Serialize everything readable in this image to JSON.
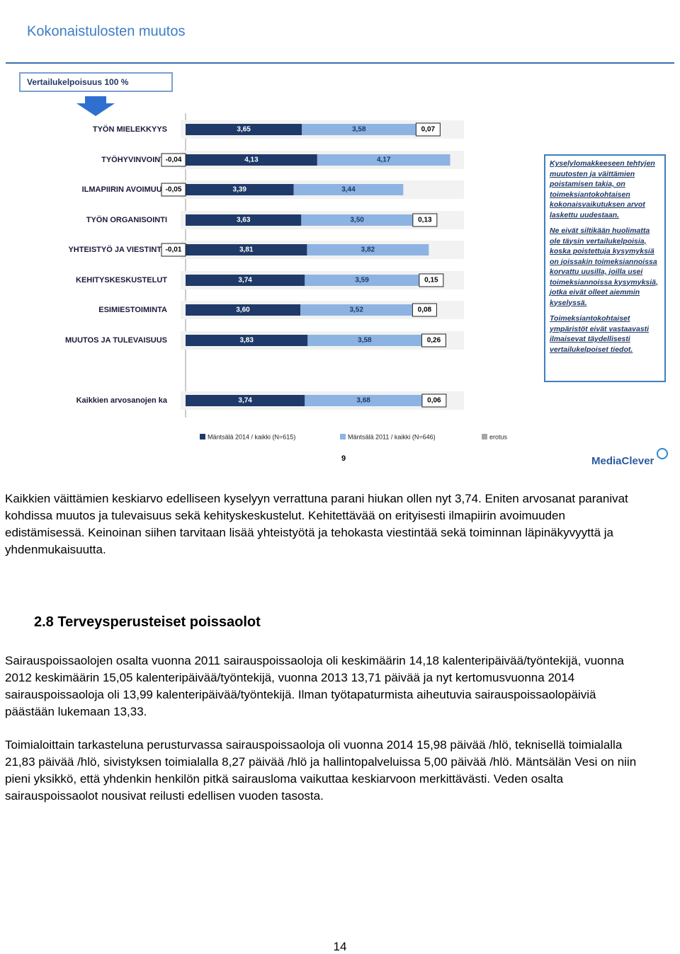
{
  "header": {
    "title": "Kokonaistulosten muutos",
    "box": "Vertailukelpoisuus 100 %"
  },
  "chart_data": {
    "type": "bar",
    "categories": [
      "TYÖN MIELEKKYYS",
      "TYÖHYVINVOINTI",
      "ILMAPIIRIN AVOIMUUS",
      "TYÖN ORGANISOINTI",
      "YHTEISTYÖ JA VIESTINTÄ",
      "KEHITYSKESKUSTELUT",
      "ESIMIESTOIMINTA",
      "MUUTOS JA TULEVAISUUS",
      "Kaikkien arvosanojen ka"
    ],
    "series": [
      {
        "name": "Mäntsälä 2014 / kaikki (N=615)",
        "color": "#1f3a68",
        "values": [
          3.65,
          4.13,
          3.39,
          3.63,
          3.81,
          3.74,
          3.6,
          3.83,
          3.74
        ],
        "value_labels": [
          "3,65",
          "4,13",
          "3,39",
          "3,63",
          "3,81",
          "3,74",
          "3,60",
          "3,83",
          "3,74"
        ]
      },
      {
        "name": "Mäntsälä 2011 / kaikki (N=646)",
        "color": "#8db3e2",
        "values": [
          3.58,
          4.17,
          3.44,
          3.5,
          3.82,
          3.59,
          3.52,
          3.58,
          3.68
        ],
        "value_labels": [
          "3,58",
          "4,17",
          "3,44",
          "3,50",
          "3,82",
          "3,59",
          "3,52",
          "3,58",
          "3,68"
        ]
      },
      {
        "name": "erotus",
        "color": "#a6a6a6",
        "values": [
          0.07,
          -0.04,
          -0.05,
          0.13,
          -0.01,
          0.15,
          0.08,
          0.26,
          0.06
        ],
        "value_labels": [
          "0,07",
          "-0,04",
          "-0,05",
          "0,13",
          "-0,01",
          "0,15",
          "0,08",
          "0,26",
          "0,06"
        ]
      }
    ]
  },
  "sidebar": [
    "Kyselylomakkeeseen tehtyjen muutosten ja väittämien poistamisen takia, on toimeksiantokohtaisen kokonaisvaikutuksen arvot laskettu uudestaan.",
    "Ne eivät siltikään huolimatta ole täysin vertailukelpoisia, koska poistettuja kysymyksiä on joissakin toimeksiannoissa korvattu uusilla, joilla usei toimeksiannoissa kysymyksiä, jotka eivät olleet aiemmin kyselyssä.",
    "Toimeksiantokohtaiset ympäristöt eivät vastaavasti ilmaisevat täydellisesti vertailukelpoiset tiedot."
  ],
  "image_page": "9",
  "logo": "MediaClever",
  "paragraphs": [
    "Kaikkien väittämien keskiarvo edelliseen kyselyyn verrattuna parani hiukan ollen nyt 3,74. Eniten arvosanat paranivat kohdissa muutos ja tulevaisuus sekä kehityskeskustelut.  Kehitettävää on erityisesti ilmapiirin avoimuuden edistämisessä. Keinoinan siihen tarvitaan lisää yhteistyötä ja tehokasta viestintää sekä toiminnan läpinäkyvyyttä ja yhdenmukaisuutta."
  ],
  "section": {
    "heading": "2.8 Terveysperusteiset poissaolot",
    "paragraphs": [
      "Sairauspoissaolojen osalta vuonna 2011 sairauspoissaoloja oli keskimäärin 14,18 kalenteripäivää/työntekijä, vuonna 2012 keskimäärin 15,05 kalenteripäivää/työntekijä, vuonna 2013 13,71 päivää ja nyt kertomusvuonna 2014 sairauspoissaoloja oli 13,99 kalenteripäivää/työntekijä. Ilman työtapaturmista aiheutuvia sairauspoissaolopäiviä päästään lukemaan 13,33.",
      "Toimialoittain tarkasteluna perusturvassa sairauspoissaoloja oli vuonna 2014 15,98 päivää /hlö, teknisellä toimialalla 21,83 päivää /hlö, sivistyksen toimialalla 8,27 päivää /hlö ja hallintopalveluissa 5,00 päivää /hlö. Mäntsälän Vesi on niin pieni yksikkö, että yhdenkin henkilön pitkä sairausloma vaikuttaa keskiarvoon merkittävästi. Veden osalta sairauspoissaolot nousivat reilusti edellisen vuoden tasosta."
    ]
  },
  "page_number": "14"
}
